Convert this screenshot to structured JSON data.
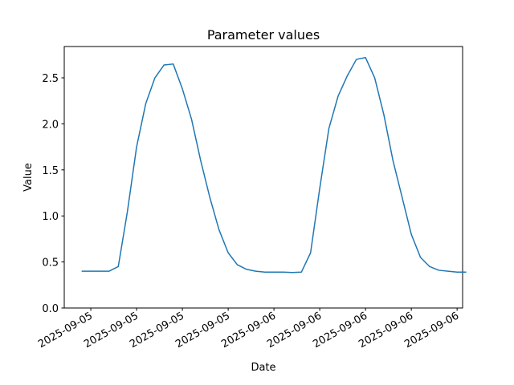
{
  "chart_data": {
    "type": "line",
    "title": "Parameter values",
    "x_label": "Date",
    "y_label": "Value",
    "series": [
      {
        "color": "#1f77b4",
        "values": [
          0.4,
          0.4,
          0.4,
          0.4,
          0.45,
          1.05,
          1.75,
          2.22,
          2.5,
          2.64,
          2.65,
          2.38,
          2.05,
          1.6,
          1.2,
          0.85,
          0.6,
          0.47,
          0.42,
          0.4,
          0.39,
          0.39,
          0.39,
          0.385,
          0.39,
          0.6,
          1.3,
          1.95,
          2.3,
          2.52,
          2.7,
          2.72,
          2.5,
          2.1,
          1.6,
          1.2,
          0.8,
          0.55,
          0.45,
          0.41,
          0.4,
          0.39,
          0.39
        ]
      }
    ],
    "xlim": [
      -1.9,
      41.6
    ],
    "xticks": [
      {
        "value": 1,
        "label": "2025-09-05"
      },
      {
        "value": 6,
        "label": "2025-09-05"
      },
      {
        "value": 11,
        "label": "2025-09-05"
      },
      {
        "value": 16,
        "label": "2025-09-05"
      },
      {
        "value": 21,
        "label": "2025-09-06"
      },
      {
        "value": 26,
        "label": "2025-09-06"
      },
      {
        "value": 31,
        "label": "2025-09-06"
      },
      {
        "value": 36,
        "label": "2025-09-06"
      },
      {
        "value": 41,
        "label": "2025-09-06"
      }
    ],
    "ylim": [
      0,
      2.84
    ],
    "yticks": [
      {
        "value": 0,
        "label": "0.0"
      },
      0.5,
      {
        "value": 1,
        "label": "1.0"
      },
      1.5,
      {
        "value": 2,
        "label": "2.0"
      },
      2.5
    ],
    "grid": false
  }
}
